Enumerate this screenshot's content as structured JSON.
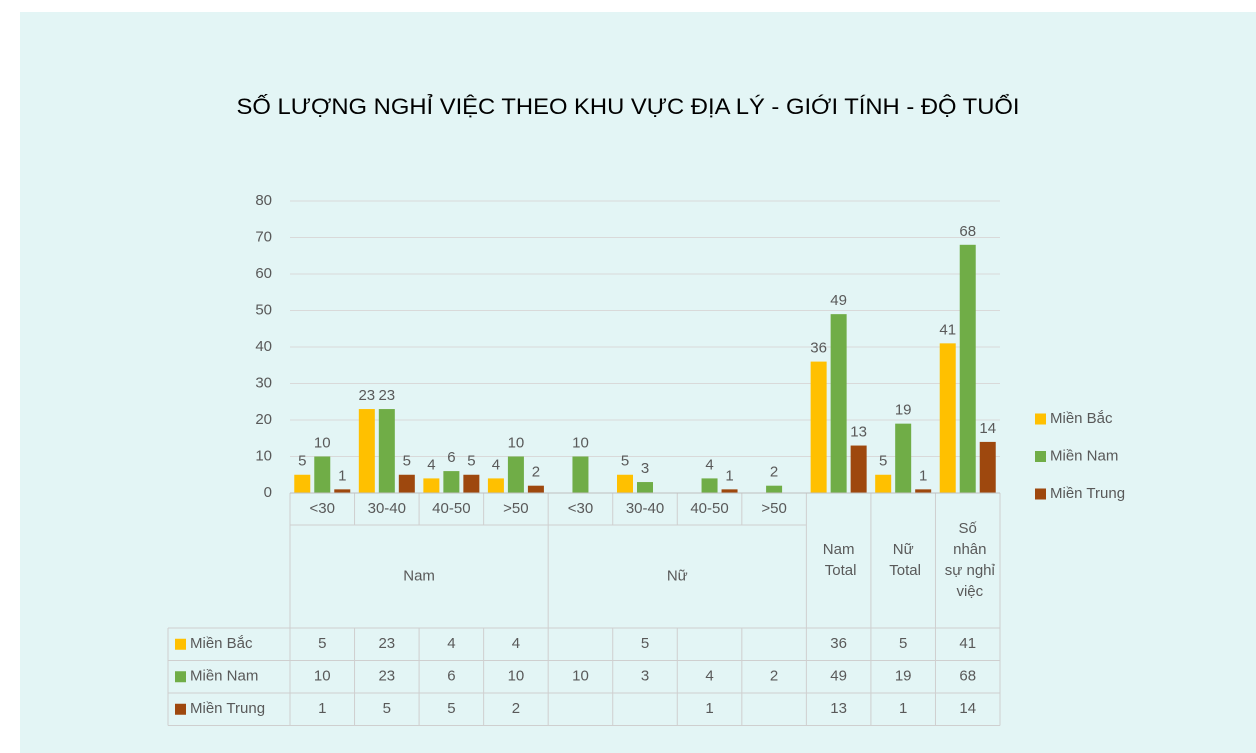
{
  "chart_data": {
    "type": "bar",
    "title": "SỐ LƯỢNG NGHỈ VIỆC THEO KHU VỰC ĐỊA LÝ - GIỚI TÍNH  - ĐỘ TUỔI",
    "categories": [
      "<30",
      "30-40",
      "40-50",
      ">50",
      "<30",
      "30-40",
      "40-50",
      ">50",
      null,
      null,
      null
    ],
    "groups": [
      {
        "label": "Nam",
        "span": 4
      },
      {
        "label": "Nữ",
        "span": 4
      },
      {
        "label": "Nam Total",
        "span": 1
      },
      {
        "label": "Nữ Total",
        "span": 1
      },
      {
        "label": "Số nhân sự nghỉ việc",
        "span": 1
      }
    ],
    "series": [
      {
        "name": "Miền Bắc",
        "color": "#ffc000",
        "values": [
          5,
          23,
          4,
          4,
          null,
          5,
          null,
          null,
          36,
          5,
          41
        ]
      },
      {
        "name": "Miền Nam",
        "color": "#70ad47",
        "values": [
          10,
          23,
          6,
          10,
          10,
          3,
          4,
          2,
          49,
          19,
          68
        ]
      },
      {
        "name": "Miền Trung",
        "color": "#9e480e",
        "values": [
          1,
          5,
          5,
          2,
          null,
          null,
          1,
          null,
          13,
          1,
          14
        ]
      }
    ],
    "ylim": [
      0,
      80
    ],
    "yticks": [
      0,
      10,
      20,
      30,
      40,
      50,
      60,
      70,
      80
    ],
    "grid": true,
    "legend": "right",
    "data_labels": true,
    "data_table": true
  }
}
